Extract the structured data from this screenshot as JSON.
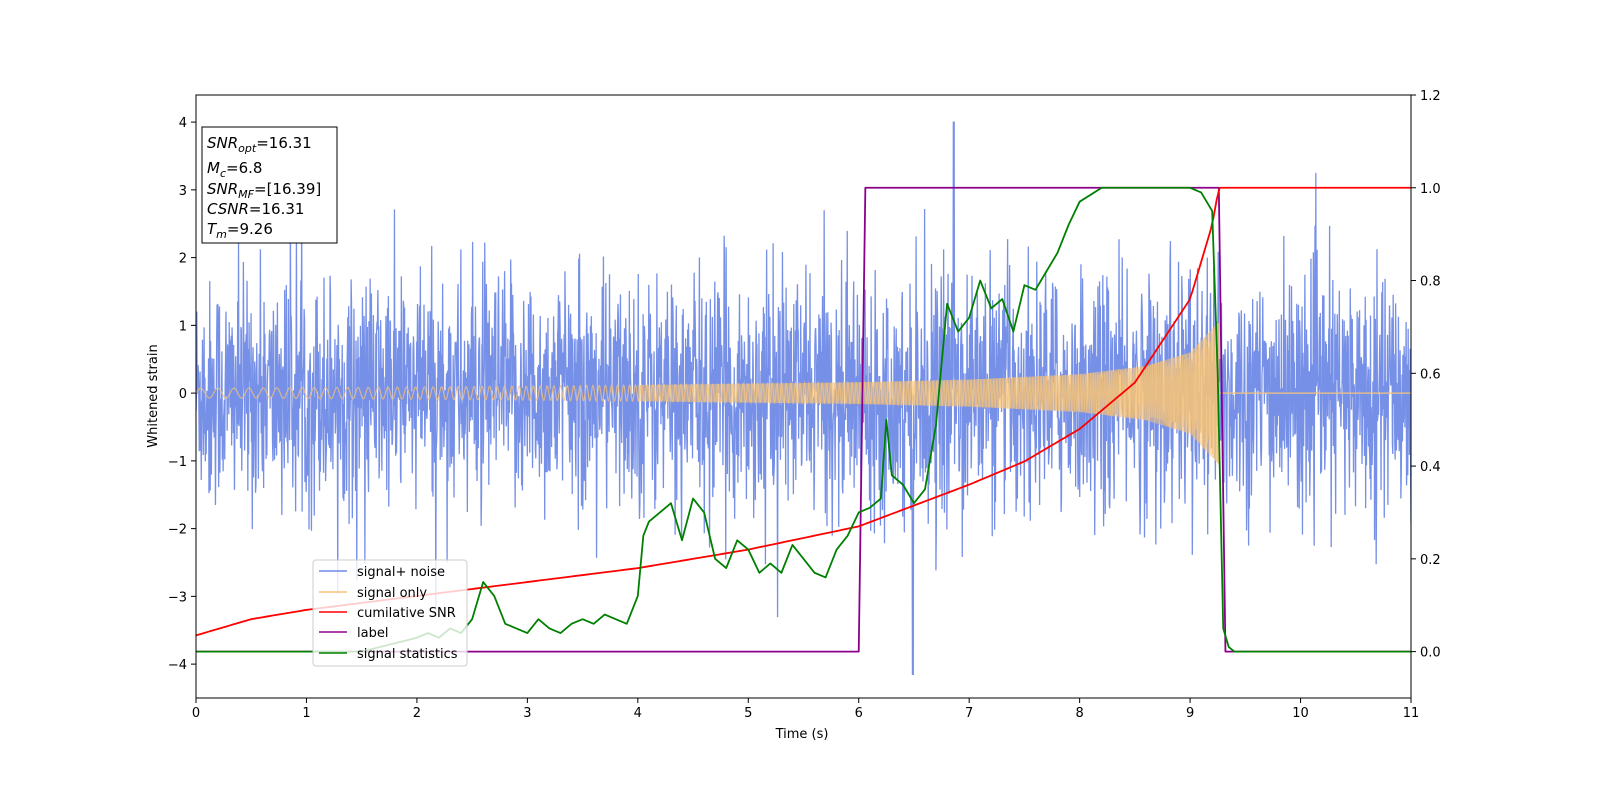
{
  "chart_data": {
    "type": "line",
    "xlabel": "Time (s)",
    "ylabel": "Whitened strain",
    "xlim": [
      0,
      11
    ],
    "ylim": [
      -4.5,
      4.4
    ],
    "y2lim": [
      -0.1,
      1.2
    ],
    "xticks": [
      "0",
      "1",
      "2",
      "3",
      "4",
      "5",
      "6",
      "7",
      "8",
      "9",
      "10",
      "11"
    ],
    "yticks": [
      "−4",
      "−3",
      "−2",
      "−1",
      "0",
      "1",
      "2",
      "3",
      "4"
    ],
    "y2ticks": [
      "0.0",
      "0.2",
      "0.4",
      "0.6",
      "0.8",
      "1.0",
      "1.2"
    ],
    "grid": false,
    "legend_position": "lower-left",
    "info_box": {
      "snr_opt": {
        "base": "SNR",
        "sub": "opt",
        "value": "=16.31"
      },
      "mc": {
        "base": "M",
        "sub": "c",
        "value": "=6.8"
      },
      "snr_mf": {
        "base": "SNR",
        "sub": "MF",
        "value": "=[16.39]"
      },
      "csnr": {
        "base": "CSNR",
        "sub": "",
        "value": "=16.31"
      },
      "tm": {
        "base": "T",
        "sub": "m",
        "value": "=9.26"
      }
    },
    "series": [
      {
        "name": "signal+ noise",
        "color": "#6f8ae6",
        "axis": "left",
        "description": "noisy trace, amplitude about ±2.5, peaks to 4.0 near t=6.85 and −4.2 near t=6.5"
      },
      {
        "name": "signal only",
        "color": "#f5c27a",
        "axis": "left",
        "merger_time": 9.26,
        "envelope": {
          "x": [
            0,
            2,
            4,
            6,
            7,
            8,
            8.6,
            9.0,
            9.2,
            9.26
          ],
          "y": [
            0.07,
            0.09,
            0.12,
            0.16,
            0.2,
            0.28,
            0.4,
            0.6,
            0.95,
            1.05
          ]
        }
      },
      {
        "name": "cumilative SNR",
        "color": "#ff0000",
        "axis": "right",
        "x": [
          0,
          0.5,
          1,
          2,
          3,
          4,
          5,
          6,
          7,
          7.5,
          8,
          8.5,
          9,
          9.2,
          9.26,
          11
        ],
        "y": [
          0.035,
          0.07,
          0.09,
          0.12,
          0.15,
          0.18,
          0.22,
          0.27,
          0.36,
          0.41,
          0.48,
          0.58,
          0.76,
          0.92,
          1.0,
          1.0
        ]
      },
      {
        "name": "label",
        "color": "#8b008b",
        "axis": "right",
        "x": [
          0,
          6.0,
          6.06,
          9.26,
          9.32,
          11
        ],
        "y": [
          0,
          0,
          1,
          1,
          0,
          0
        ]
      },
      {
        "name": "signal statistics",
        "color": "#008000",
        "axis": "right",
        "x": [
          0,
          0.5,
          1,
          1.5,
          2,
          2.1,
          2.2,
          2.3,
          2.4,
          2.5,
          2.6,
          2.7,
          2.8,
          2.9,
          3.0,
          3.1,
          3.2,
          3.3,
          3.4,
          3.5,
          3.6,
          3.7,
          3.8,
          3.9,
          4.0,
          4.05,
          4.1,
          4.2,
          4.3,
          4.4,
          4.5,
          4.6,
          4.7,
          4.8,
          4.9,
          5.0,
          5.1,
          5.2,
          5.3,
          5.4,
          5.5,
          5.6,
          5.7,
          5.8,
          5.9,
          6.0,
          6.1,
          6.2,
          6.25,
          6.3,
          6.4,
          6.5,
          6.6,
          6.7,
          6.8,
          6.9,
          7.0,
          7.1,
          7.2,
          7.3,
          7.4,
          7.5,
          7.6,
          7.7,
          7.8,
          7.9,
          8.0,
          8.2,
          8.4,
          8.6,
          8.8,
          9.0,
          9.1,
          9.2,
          9.25,
          9.3,
          9.35,
          9.4,
          10,
          11
        ],
        "y": [
          0.0,
          0.0,
          0.0,
          0.0,
          0.03,
          0.04,
          0.03,
          0.05,
          0.04,
          0.07,
          0.15,
          0.12,
          0.06,
          0.05,
          0.04,
          0.07,
          0.05,
          0.04,
          0.06,
          0.07,
          0.06,
          0.08,
          0.07,
          0.06,
          0.12,
          0.25,
          0.28,
          0.3,
          0.32,
          0.24,
          0.33,
          0.3,
          0.2,
          0.18,
          0.24,
          0.22,
          0.17,
          0.19,
          0.17,
          0.23,
          0.2,
          0.17,
          0.16,
          0.22,
          0.25,
          0.3,
          0.31,
          0.33,
          0.5,
          0.38,
          0.36,
          0.32,
          0.35,
          0.49,
          0.75,
          0.69,
          0.72,
          0.8,
          0.74,
          0.76,
          0.69,
          0.79,
          0.78,
          0.82,
          0.86,
          0.92,
          0.97,
          1.0,
          1.0,
          1.0,
          1.0,
          1.0,
          0.99,
          0.95,
          0.6,
          0.05,
          0.01,
          0.0,
          0.0,
          0.0
        ]
      }
    ]
  }
}
